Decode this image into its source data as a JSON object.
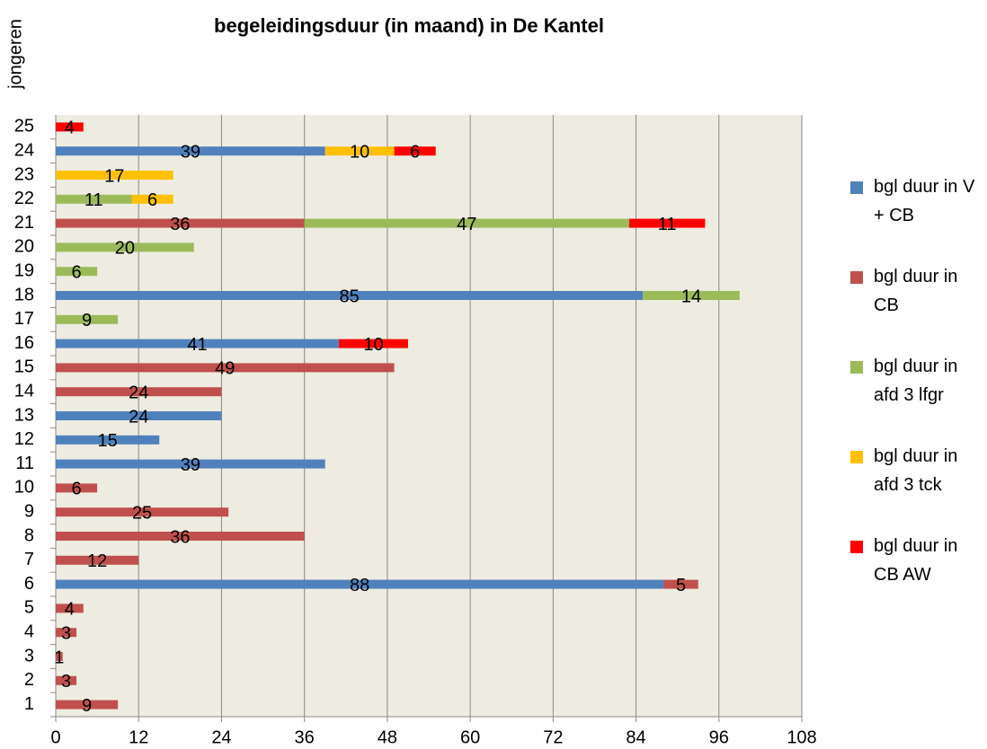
{
  "chart_data": {
    "type": "stacked_barh",
    "title": "begeleidingsduur (in maand) in De Kantel",
    "y_label": "jongeren",
    "categories": [
      "1",
      "2",
      "3",
      "4",
      "5",
      "6",
      "7",
      "8",
      "9",
      "10",
      "11",
      "12",
      "13",
      "14",
      "15",
      "16",
      "17",
      "18",
      "19",
      "20",
      "21",
      "22",
      "23",
      "24",
      "25"
    ],
    "series": [
      {
        "name": "bgl duur in V + CB",
        "color": "#4f81bd",
        "values": [
          null,
          null,
          null,
          null,
          null,
          88,
          null,
          null,
          null,
          null,
          39,
          15,
          24,
          null,
          null,
          41,
          null,
          85,
          null,
          null,
          null,
          null,
          null,
          39,
          null
        ]
      },
      {
        "name": "bgl duur in CB",
        "color": "#c0504d",
        "values": [
          9,
          3,
          1,
          3,
          4,
          5,
          12,
          36,
          25,
          6,
          null,
          null,
          null,
          24,
          49,
          null,
          null,
          null,
          null,
          null,
          36,
          null,
          null,
          null,
          null
        ]
      },
      {
        "name": "bgl duur in afd 3 lfgr",
        "color": "#9bbb59",
        "values": [
          null,
          null,
          null,
          null,
          null,
          null,
          null,
          null,
          null,
          null,
          null,
          null,
          null,
          null,
          null,
          null,
          9,
          14,
          6,
          20,
          47,
          11,
          null,
          null,
          null
        ]
      },
      {
        "name": "bgl duur in afd 3 tck",
        "color": "#ffc000",
        "values": [
          null,
          null,
          null,
          null,
          null,
          null,
          null,
          null,
          null,
          null,
          null,
          null,
          null,
          null,
          null,
          null,
          null,
          null,
          null,
          null,
          null,
          6,
          17,
          10,
          null
        ]
      },
      {
        "name": "bgl duur in CB AW",
        "color": "#ff0000",
        "values": [
          null,
          null,
          null,
          null,
          null,
          null,
          null,
          null,
          null,
          null,
          null,
          null,
          null,
          null,
          null,
          10,
          null,
          null,
          null,
          null,
          11,
          null,
          null,
          6,
          4
        ]
      }
    ],
    "xlim": [
      0,
      108
    ],
    "xticks": [
      0,
      12,
      24,
      36,
      48,
      60,
      72,
      84,
      96,
      108
    ],
    "grid": true,
    "legend": "right"
  }
}
